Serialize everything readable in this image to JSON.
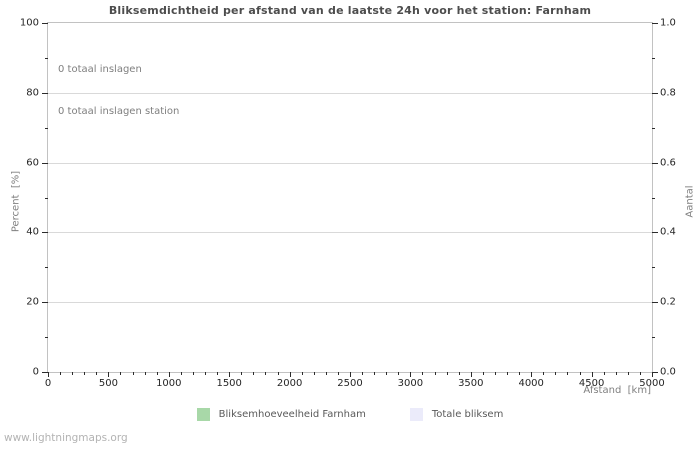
{
  "watermark": "www.lightningmaps.org",
  "chart_data": {
    "type": "bar",
    "title": "Bliksemdichtheid per afstand van de laatste 24h voor het station: Farnham",
    "annotations": [
      "0 totaal inslagen",
      "0 totaal inslagen station"
    ],
    "grid": "horizontal-major-only",
    "legend_position": "bottom-center",
    "x_axis": {
      "label": "Afstand  [km]",
      "min": 0,
      "max": 5000,
      "minor_step": 100,
      "major_ticks": [
        {
          "value": 0,
          "label": "0"
        },
        {
          "value": 500,
          "label": "500"
        },
        {
          "value": 1000,
          "label": "1000"
        },
        {
          "value": 1500,
          "label": "1500"
        },
        {
          "value": 2000,
          "label": "2000"
        },
        {
          "value": 2500,
          "label": "2500"
        },
        {
          "value": 3000,
          "label": "3000"
        },
        {
          "value": 3500,
          "label": "3500"
        },
        {
          "value": 4000,
          "label": "4000"
        },
        {
          "value": 4500,
          "label": "4500"
        },
        {
          "value": 5000,
          "label": "5000"
        }
      ]
    },
    "y_left_axis": {
      "label": "Percent  [%]",
      "min": 0,
      "max": 100,
      "minor_step": 10,
      "major_ticks": [
        {
          "value": 0,
          "label": "0"
        },
        {
          "value": 20,
          "label": "20"
        },
        {
          "value": 40,
          "label": "40"
        },
        {
          "value": 60,
          "label": "60"
        },
        {
          "value": 80,
          "label": "80"
        },
        {
          "value": 100,
          "label": "100"
        }
      ]
    },
    "y_right_axis": {
      "label": "Aantal",
      "min": 0,
      "max": 1,
      "minor_step": 0.1,
      "major_ticks": [
        {
          "value": 0,
          "label": "0.0"
        },
        {
          "value": 0.2,
          "label": "0.2"
        },
        {
          "value": 0.4,
          "label": "0.4"
        },
        {
          "value": 0.6,
          "label": "0.6"
        },
        {
          "value": 0.8,
          "label": "0.8"
        },
        {
          "value": 1.0,
          "label": "1.0"
        }
      ]
    },
    "series": [
      {
        "name": "Bliksemhoeveelheid Farnham",
        "color": "#a8d8a8",
        "values": []
      },
      {
        "name": "Totale bliksem",
        "color": "#ebebfa",
        "values": []
      }
    ]
  }
}
